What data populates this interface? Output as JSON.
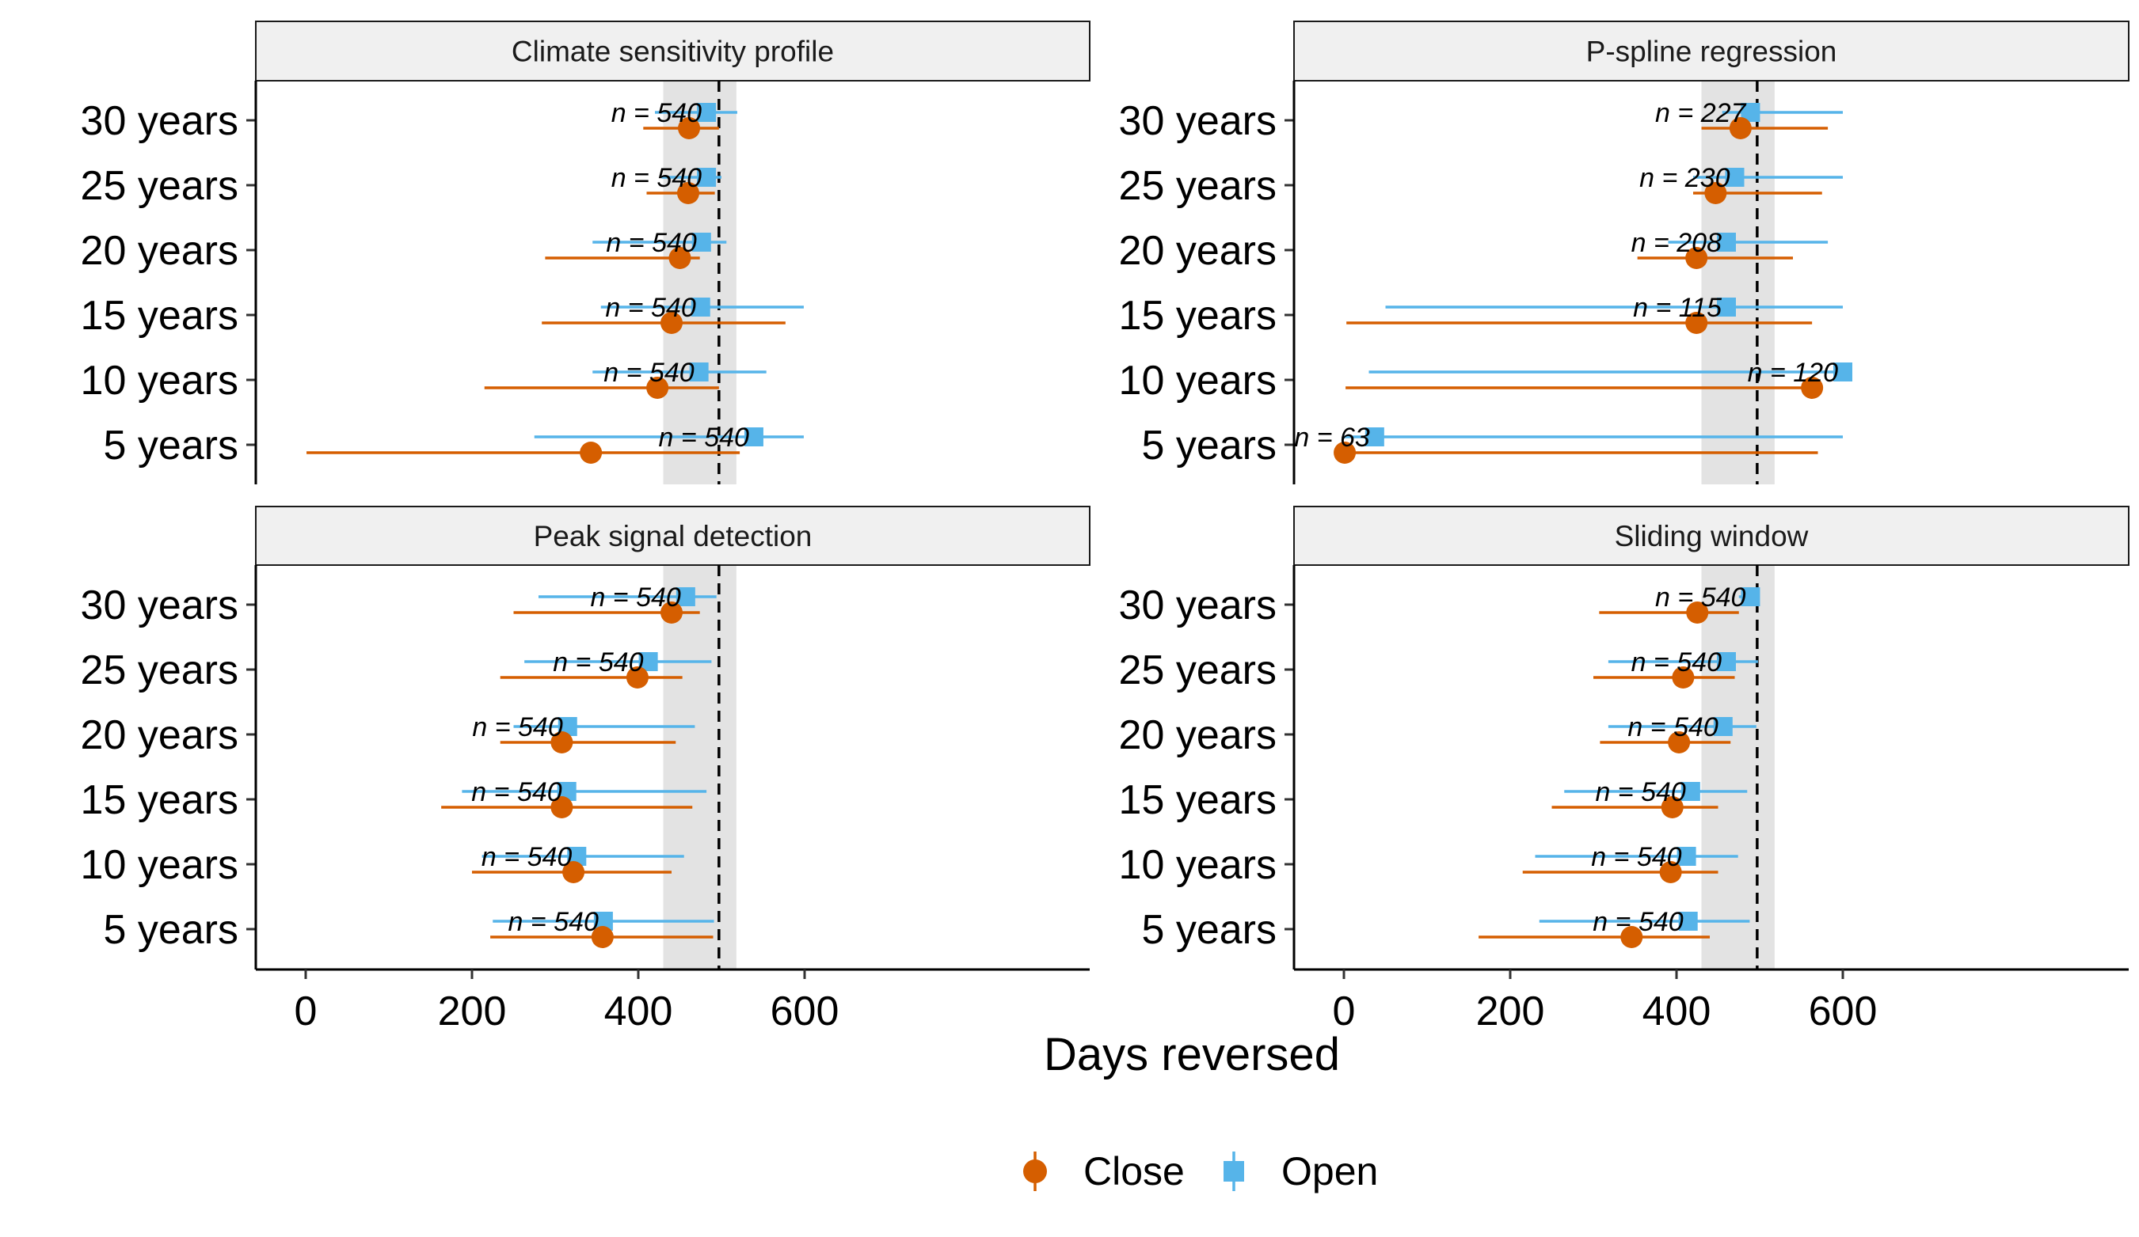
{
  "chart_data": {
    "type": "scatter",
    "xlabel": "Days reversed",
    "xlim": [
      -40,
      630
    ],
    "xticks": [
      0,
      200,
      400,
      600
    ],
    "categories": [
      "30 years",
      "25 years",
      "20 years",
      "15 years",
      "10 years",
      "5 years"
    ],
    "reference_line": 497,
    "reference_band": [
      430,
      518
    ],
    "grid": false,
    "legend": {
      "position": "bottom",
      "entries": [
        {
          "name": "Close",
          "color": "#D55E00",
          "marker": "circle"
        },
        {
          "name": "Open",
          "color": "#56B4E9",
          "marker": "square"
        }
      ]
    },
    "panels": [
      {
        "title": "Climate sensitivity profile",
        "rows": [
          {
            "category": "30 years",
            "n_label": "n = 540",
            "close": {
              "x": 461,
              "lo": 406,
              "hi": 497
            },
            "open": {
              "x": 482,
              "lo": 420,
              "hi": 519
            }
          },
          {
            "category": "25 years",
            "n_label": "n = 540",
            "close": {
              "x": 460,
              "lo": 410,
              "hi": 492
            },
            "open": {
              "x": 482,
              "lo": 428,
              "hi": 500
            }
          },
          {
            "category": "20 years",
            "n_label": "n = 540",
            "close": {
              "x": 450,
              "lo": 288,
              "hi": 474
            },
            "open": {
              "x": 476,
              "lo": 345,
              "hi": 506
            }
          },
          {
            "category": "15 years",
            "n_label": "n = 540",
            "close": {
              "x": 440,
              "lo": 284,
              "hi": 577
            },
            "open": {
              "x": 475,
              "lo": 355,
              "hi": 599
            }
          },
          {
            "category": "10 years",
            "n_label": "n = 540",
            "close": {
              "x": 423,
              "lo": 215,
              "hi": 497
            },
            "open": {
              "x": 473,
              "lo": 345,
              "hi": 554
            }
          },
          {
            "category": "5 years",
            "n_label": "n = 540",
            "close": {
              "x": 343,
              "lo": 1,
              "hi": 522
            },
            "open": {
              "x": 539,
              "lo": 275,
              "hi": 599
            }
          }
        ]
      },
      {
        "title": "P-spline regression",
        "rows": [
          {
            "category": "30 years",
            "n_label": "n = 227",
            "close": {
              "x": 477,
              "lo": 430,
              "hi": 582
            },
            "open": {
              "x": 489,
              "lo": 455,
              "hi": 600
            }
          },
          {
            "category": "25 years",
            "n_label": "n = 230",
            "close": {
              "x": 447,
              "lo": 420,
              "hi": 575
            },
            "open": {
              "x": 470,
              "lo": 420,
              "hi": 600
            }
          },
          {
            "category": "20 years",
            "n_label": "n = 208",
            "close": {
              "x": 424,
              "lo": 353,
              "hi": 540
            },
            "open": {
              "x": 460,
              "lo": 390,
              "hi": 582
            }
          },
          {
            "category": "15 years",
            "n_label": "n = 115",
            "close": {
              "x": 424,
              "lo": 3,
              "hi": 563
            },
            "open": {
              "x": 460,
              "lo": 50,
              "hi": 600
            }
          },
          {
            "category": "10 years",
            "n_label": "n = 120",
            "close": {
              "x": 563,
              "lo": 2,
              "hi": 575
            },
            "open": {
              "x": 600,
              "lo": 30,
              "hi": 600
            }
          },
          {
            "category": "5 years",
            "n_label": "n = 63",
            "close": {
              "x": 1,
              "lo": 0,
              "hi": 570
            },
            "open": {
              "x": 37,
              "lo": 0,
              "hi": 600
            }
          }
        ]
      },
      {
        "title": "Peak signal detection",
        "rows": [
          {
            "category": "30 years",
            "n_label": "n = 540",
            "close": {
              "x": 440,
              "lo": 250,
              "hi": 474
            },
            "open": {
              "x": 457,
              "lo": 280,
              "hi": 494
            }
          },
          {
            "category": "25 years",
            "n_label": "n = 540",
            "close": {
              "x": 399,
              "lo": 234,
              "hi": 453
            },
            "open": {
              "x": 412,
              "lo": 263,
              "hi": 488
            }
          },
          {
            "category": "20 years",
            "n_label": "n = 540",
            "close": {
              "x": 308,
              "lo": 234,
              "hi": 445
            },
            "open": {
              "x": 315,
              "lo": 250,
              "hi": 468
            }
          },
          {
            "category": "15 years",
            "n_label": "n = 540",
            "close": {
              "x": 308,
              "lo": 163,
              "hi": 465
            },
            "open": {
              "x": 314,
              "lo": 188,
              "hi": 482
            }
          },
          {
            "category": "10 years",
            "n_label": "n = 540",
            "close": {
              "x": 322,
              "lo": 200,
              "hi": 440
            },
            "open": {
              "x": 326,
              "lo": 212,
              "hi": 455
            }
          },
          {
            "category": "5 years",
            "n_label": "n = 540",
            "close": {
              "x": 357,
              "lo": 222,
              "hi": 490
            },
            "open": {
              "x": 358,
              "lo": 225,
              "hi": 491
            }
          }
        ]
      },
      {
        "title": "Sliding window",
        "rows": [
          {
            "category": "30 years",
            "n_label": "n = 540",
            "close": {
              "x": 425,
              "lo": 307,
              "hi": 475
            },
            "open": {
              "x": 489,
              "lo": 475,
              "hi": 500
            }
          },
          {
            "category": "25 years",
            "n_label": "n = 540",
            "close": {
              "x": 408,
              "lo": 300,
              "hi": 470
            },
            "open": {
              "x": 460,
              "lo": 318,
              "hi": 498
            }
          },
          {
            "category": "20 years",
            "n_label": "n = 540",
            "close": {
              "x": 403,
              "lo": 308,
              "hi": 465
            },
            "open": {
              "x": 456,
              "lo": 318,
              "hi": 496
            }
          },
          {
            "category": "15 years",
            "n_label": "n = 540",
            "close": {
              "x": 395,
              "lo": 250,
              "hi": 450
            },
            "open": {
              "x": 417,
              "lo": 265,
              "hi": 485
            }
          },
          {
            "category": "10 years",
            "n_label": "n = 540",
            "close": {
              "x": 393,
              "lo": 215,
              "hi": 450
            },
            "open": {
              "x": 412,
              "lo": 230,
              "hi": 474
            }
          },
          {
            "category": "5 years",
            "n_label": "n = 540",
            "close": {
              "x": 346,
              "lo": 162,
              "hi": 440
            },
            "open": {
              "x": 414,
              "lo": 235,
              "hi": 488
            }
          }
        ]
      }
    ]
  }
}
